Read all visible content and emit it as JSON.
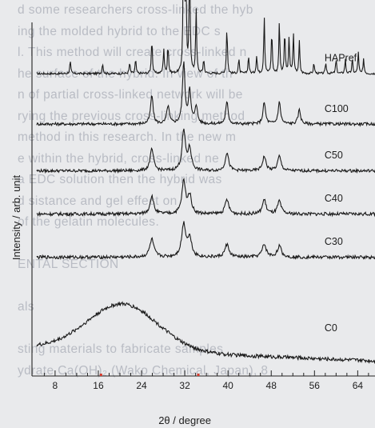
{
  "background_text_lines": [
    "d some researchers cross-linked the hyb",
    "ing the molded hybrid to the EDC s",
    "l. This method will create cross-linked n",
    "he surface of the hybrid. In view of th",
    "n of partial cross-linked network will be",
    "rying the previous cross-linking method",
    "method in this research. In the new m",
    "e within the hybrid, cross-linked ne",
    "a EDC solution then the hybrid was",
    "d          sistance and gel effect on",
    "  of the gelatin molecules.",
    "",
    "ENTAL SECTION",
    "",
    "als",
    "",
    "sting  materials  to  fabricate  samples",
    "ydrate Ca(OH)₂ (Wako Chemical, Japan), 8"
  ],
  "chart_data": {
    "type": "line",
    "xlabel": "2θ / degree",
    "ylabel": "Intensity / arb. unit",
    "xlim": [
      4,
      70
    ],
    "xticks": [
      8,
      16,
      24,
      32,
      40,
      48,
      56,
      64
    ],
    "grid": false,
    "series": [
      {
        "name": "HAPref",
        "baseline": 0.84,
        "color": "#1a1a1a",
        "peaks": [
          [
            10.8,
            0.035
          ],
          [
            16.8,
            0.03
          ],
          [
            21.8,
            0.03
          ],
          [
            22.9,
            0.04
          ],
          [
            25.9,
            0.1
          ],
          [
            28.1,
            0.07
          ],
          [
            28.9,
            0.08
          ],
          [
            31.8,
            0.52
          ],
          [
            32.2,
            0.27
          ],
          [
            32.9,
            0.34
          ],
          [
            34.1,
            0.18
          ],
          [
            35.5,
            0.04
          ],
          [
            39.8,
            0.13
          ],
          [
            42.0,
            0.04
          ],
          [
            43.8,
            0.05
          ],
          [
            45.3,
            0.05
          ],
          [
            46.7,
            0.16
          ],
          [
            48.1,
            0.12
          ],
          [
            49.5,
            0.14
          ],
          [
            50.5,
            0.12
          ],
          [
            51.3,
            0.1
          ],
          [
            52.1,
            0.11
          ],
          [
            53.2,
            0.09
          ],
          [
            55.9,
            0.03
          ],
          [
            58.1,
            0.03
          ],
          [
            60.0,
            0.04
          ],
          [
            61.7,
            0.04
          ],
          [
            63.0,
            0.04
          ],
          [
            64.1,
            0.06
          ],
          [
            65.1,
            0.04
          ]
        ],
        "noise": 0.006
      },
      {
        "name": "C100",
        "baseline": 0.7,
        "color": "#1a1a1a",
        "peaks": [
          [
            25.9,
            0.08
          ],
          [
            28.9,
            0.05
          ],
          [
            31.8,
            0.17
          ],
          [
            32.9,
            0.09
          ],
          [
            34.1,
            0.05
          ],
          [
            39.8,
            0.06
          ],
          [
            46.7,
            0.06
          ],
          [
            49.5,
            0.06
          ],
          [
            53.2,
            0.04
          ]
        ],
        "width": 0.55,
        "noise": 0.008
      },
      {
        "name": "C50",
        "baseline": 0.57,
        "color": "#1a1a1a",
        "peaks": [
          [
            25.9,
            0.06
          ],
          [
            31.8,
            0.11
          ],
          [
            32.9,
            0.06
          ],
          [
            39.8,
            0.05
          ],
          [
            46.7,
            0.04
          ],
          [
            49.5,
            0.04
          ]
        ],
        "width": 0.75,
        "noise": 0.008
      },
      {
        "name": "C40",
        "baseline": 0.45,
        "color": "#1a1a1a",
        "peaks": [
          [
            25.9,
            0.05
          ],
          [
            31.8,
            0.09
          ],
          [
            32.9,
            0.05
          ],
          [
            39.8,
            0.04
          ],
          [
            46.7,
            0.04
          ],
          [
            49.5,
            0.035
          ]
        ],
        "width": 0.8,
        "noise": 0.009
      },
      {
        "name": "C30",
        "baseline": 0.33,
        "color": "#1a1a1a",
        "peaks": [
          [
            25.9,
            0.05
          ],
          [
            31.8,
            0.09
          ],
          [
            32.9,
            0.05
          ],
          [
            39.8,
            0.035
          ],
          [
            46.7,
            0.035
          ],
          [
            49.5,
            0.03
          ]
        ],
        "width": 0.9,
        "noise": 0.009
      },
      {
        "name": "C0",
        "baseline": 0.08,
        "color": "#1a1a1a",
        "hump": [
          20.5,
          0.13,
          6.5
        ],
        "peaks": [],
        "noise": 0.01
      }
    ],
    "label_positions": {
      "HAPref": [
        62,
        0.875
      ],
      "C100": [
        62,
        0.733
      ],
      "C50": [
        62,
        0.605
      ],
      "C40": [
        62,
        0.485
      ],
      "C30": [
        62,
        0.365
      ],
      "C0": [
        62,
        0.125
      ]
    },
    "marker_color": "#d63a2c",
    "markers_x": [
      16.5,
      34.5
    ]
  }
}
